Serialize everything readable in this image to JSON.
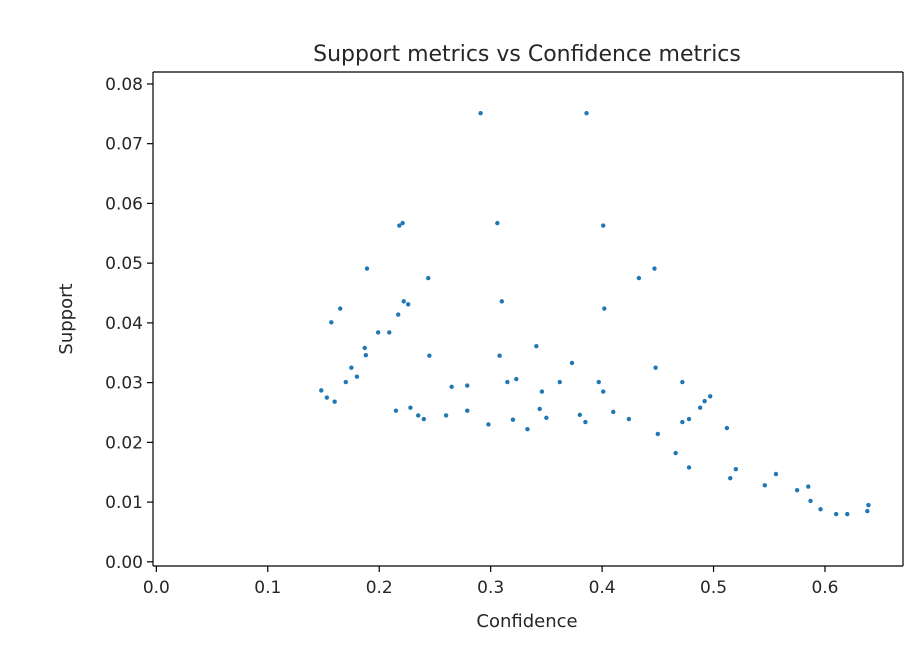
{
  "chart_data": {
    "type": "scatter",
    "title": "Support metrics vs Confidence metrics",
    "xlabel": "Confidence",
    "ylabel": "Support",
    "xlim": [
      -0.003,
      0.67
    ],
    "ylim": [
      -0.0007,
      0.082
    ],
    "xticks": [
      0.0,
      0.1,
      0.2,
      0.3,
      0.4,
      0.5,
      0.6
    ],
    "xtick_labels": [
      "0.0",
      "0.1",
      "0.2",
      "0.3",
      "0.4",
      "0.5",
      "0.6"
    ],
    "yticks": [
      0.0,
      0.01,
      0.02,
      0.03,
      0.04,
      0.05,
      0.06,
      0.07,
      0.08
    ],
    "ytick_labels": [
      "0.00",
      "0.01",
      "0.02",
      "0.03",
      "0.04",
      "0.05",
      "0.06",
      "0.07",
      "0.08"
    ],
    "grid": false,
    "marker_color": "#1f77b4",
    "series": [
      {
        "values": [
          [
            0.291,
            0.0751
          ],
          [
            0.386,
            0.0751
          ],
          [
            0.218,
            0.0563
          ],
          [
            0.221,
            0.0567
          ],
          [
            0.306,
            0.0567
          ],
          [
            0.401,
            0.0563
          ],
          [
            0.189,
            0.0491
          ],
          [
            0.244,
            0.0475
          ],
          [
            0.433,
            0.0475
          ],
          [
            0.447,
            0.0491
          ],
          [
            0.165,
            0.0424
          ],
          [
            0.157,
            0.0401
          ],
          [
            0.222,
            0.0436
          ],
          [
            0.226,
            0.0431
          ],
          [
            0.217,
            0.0414
          ],
          [
            0.209,
            0.0384
          ],
          [
            0.199,
            0.0384
          ],
          [
            0.31,
            0.0436
          ],
          [
            0.402,
            0.0424
          ],
          [
            0.187,
            0.0358
          ],
          [
            0.188,
            0.0346
          ],
          [
            0.245,
            0.0345
          ],
          [
            0.308,
            0.0345
          ],
          [
            0.341,
            0.0361
          ],
          [
            0.373,
            0.0333
          ],
          [
            0.448,
            0.0325
          ],
          [
            0.175,
            0.0325
          ],
          [
            0.17,
            0.0301
          ],
          [
            0.18,
            0.031
          ],
          [
            0.265,
            0.0293
          ],
          [
            0.279,
            0.0295
          ],
          [
            0.315,
            0.0301
          ],
          [
            0.323,
            0.0306
          ],
          [
            0.346,
            0.0285
          ],
          [
            0.362,
            0.0301
          ],
          [
            0.397,
            0.0301
          ],
          [
            0.401,
            0.0285
          ],
          [
            0.472,
            0.0301
          ],
          [
            0.497,
            0.0277
          ],
          [
            0.492,
            0.0269
          ],
          [
            0.488,
            0.0258
          ],
          [
            0.148,
            0.0287
          ],
          [
            0.153,
            0.0275
          ],
          [
            0.16,
            0.0268
          ],
          [
            0.215,
            0.0253
          ],
          [
            0.228,
            0.0258
          ],
          [
            0.235,
            0.0245
          ],
          [
            0.24,
            0.0239
          ],
          [
            0.26,
            0.0245
          ],
          [
            0.279,
            0.0253
          ],
          [
            0.298,
            0.023
          ],
          [
            0.32,
            0.0238
          ],
          [
            0.333,
            0.0222
          ],
          [
            0.344,
            0.0256
          ],
          [
            0.35,
            0.0241
          ],
          [
            0.38,
            0.0246
          ],
          [
            0.385,
            0.0234
          ],
          [
            0.41,
            0.0251
          ],
          [
            0.424,
            0.0239
          ],
          [
            0.472,
            0.0234
          ],
          [
            0.478,
            0.0239
          ],
          [
            0.512,
            0.0224
          ],
          [
            0.45,
            0.0214
          ],
          [
            0.466,
            0.0182
          ],
          [
            0.478,
            0.0158
          ],
          [
            0.52,
            0.0155
          ],
          [
            0.515,
            0.014
          ],
          [
            0.546,
            0.0128
          ],
          [
            0.556,
            0.0147
          ],
          [
            0.575,
            0.012
          ],
          [
            0.585,
            0.0126
          ],
          [
            0.587,
            0.0102
          ],
          [
            0.596,
            0.0088
          ],
          [
            0.61,
            0.008
          ],
          [
            0.62,
            0.008
          ],
          [
            0.638,
            0.0085
          ],
          [
            0.639,
            0.0095
          ]
        ]
      }
    ]
  }
}
